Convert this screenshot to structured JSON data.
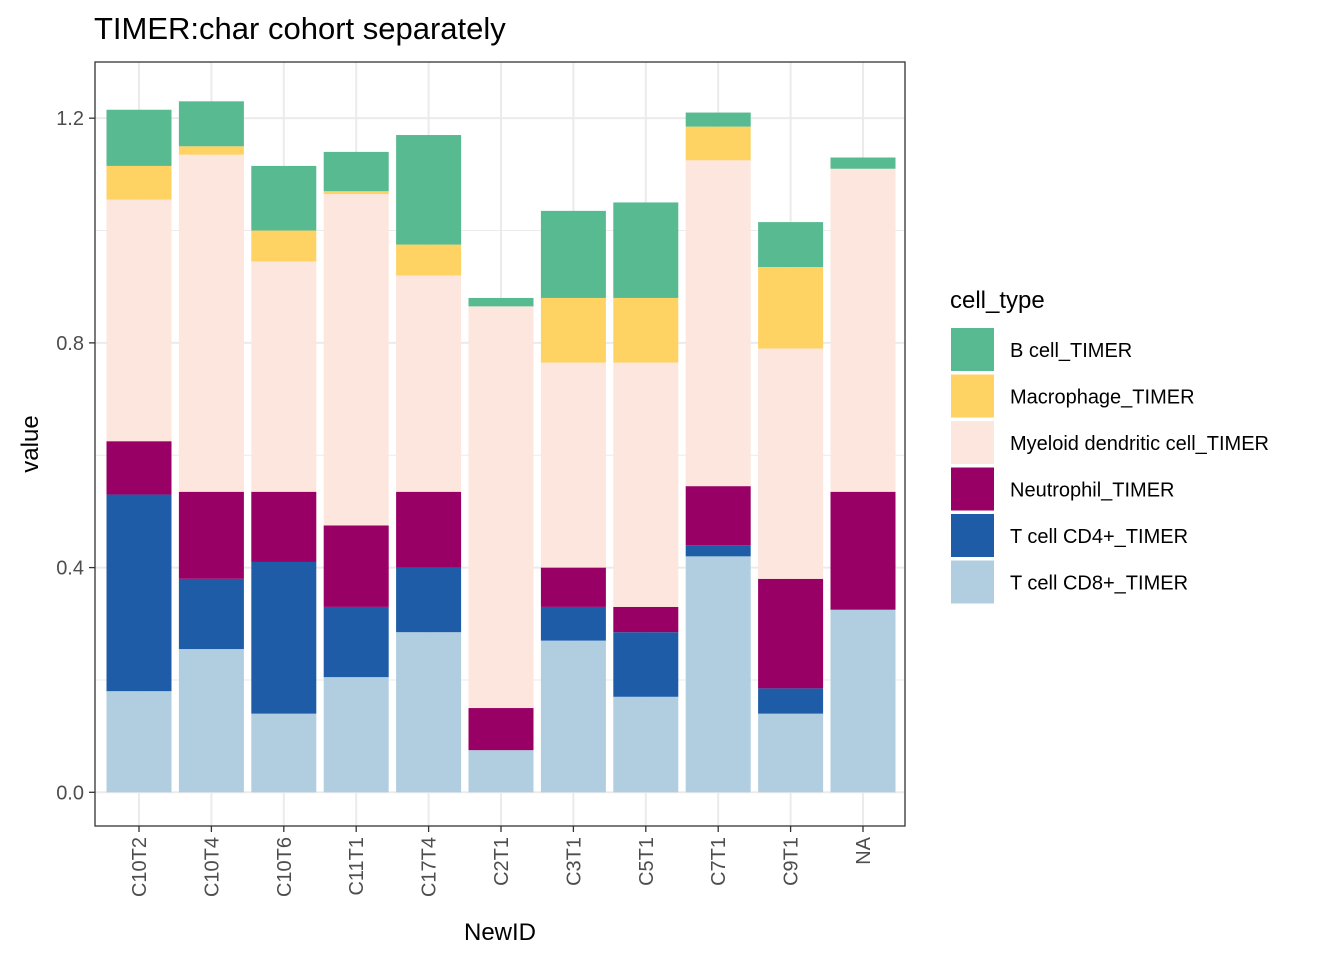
{
  "chart_data": {
    "type": "bar",
    "stacked": true,
    "title": "TIMER:char cohort separately",
    "xlabel": "NewID",
    "ylabel": "value",
    "ylim": [
      -0.06,
      1.3
    ],
    "yticks": [
      "0.0",
      "0.4",
      "0.8",
      "1.2"
    ],
    "ytick_values": [
      0.0,
      0.4,
      0.8,
      1.2
    ],
    "grid": true,
    "legend_position": "right",
    "legend_title": "cell_type",
    "categories": [
      "C10T2",
      "C10T4",
      "C10T6",
      "C11T1",
      "C17T4",
      "C2T1",
      "C3T1",
      "C5T1",
      "C7T1",
      "C9T1",
      "NA"
    ],
    "series": [
      {
        "name": "B cell_TIMER",
        "color": "#57BA91",
        "values": [
          0.1,
          0.08,
          0.115,
          0.07,
          0.195,
          0.015,
          0.155,
          0.17,
          0.025,
          0.08,
          0.02
        ]
      },
      {
        "name": "Macrophage_TIMER",
        "color": "#FFD264",
        "values": [
          0.06,
          0.015,
          0.055,
          0.005,
          0.055,
          0.0,
          0.115,
          0.115,
          0.06,
          0.145,
          0.0
        ]
      },
      {
        "name": "Myeloid dendritic cell_TIMER",
        "color": "#FCE6DD",
        "values": [
          0.43,
          0.6,
          0.41,
          0.59,
          0.385,
          0.715,
          0.365,
          0.435,
          0.58,
          0.41,
          0.575
        ]
      },
      {
        "name": "Neutrophil_TIMER",
        "color": "#990066",
        "values": [
          0.095,
          0.155,
          0.125,
          0.145,
          0.135,
          0.075,
          0.07,
          0.045,
          0.105,
          0.195,
          0.21
        ]
      },
      {
        "name": "T cell CD4+_TIMER",
        "color": "#1E5CA8",
        "values": [
          0.35,
          0.125,
          0.27,
          0.125,
          0.115,
          0.0,
          0.06,
          0.115,
          0.02,
          0.045,
          0.0
        ]
      },
      {
        "name": "T cell CD8+_TIMER",
        "color": "#B1CEE1",
        "values": [
          0.18,
          0.255,
          0.14,
          0.205,
          0.285,
          0.075,
          0.27,
          0.17,
          0.42,
          0.14,
          0.325
        ]
      }
    ]
  }
}
